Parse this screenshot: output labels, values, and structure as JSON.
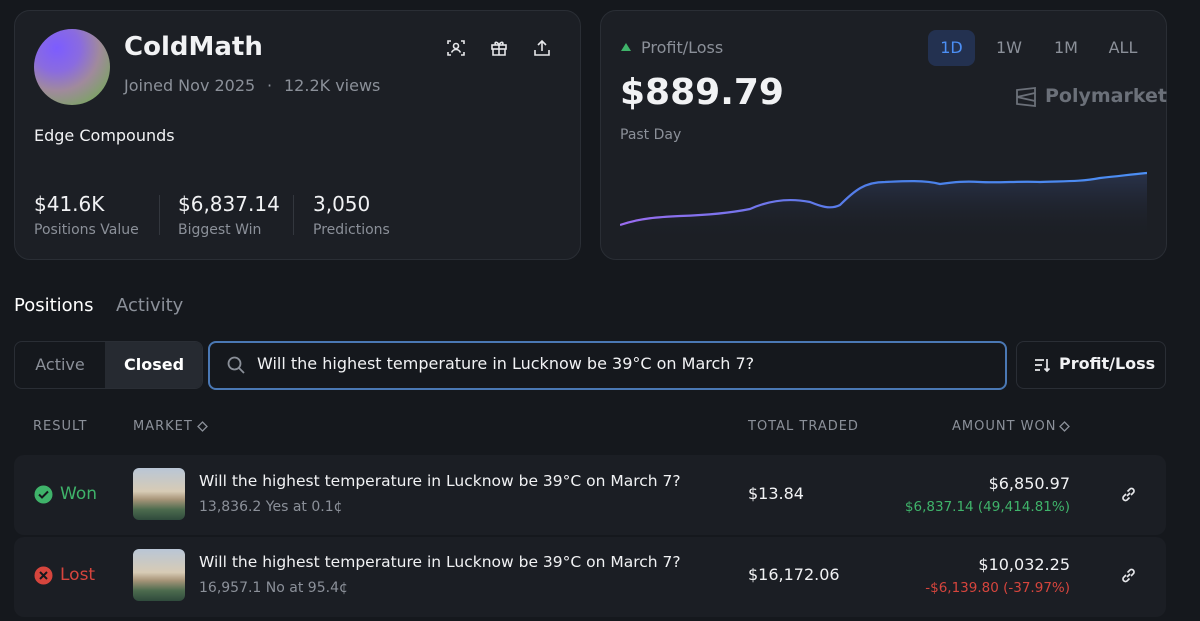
{
  "profile": {
    "name": "ColdMath",
    "joined": "Joined Nov 2025",
    "separator": "·",
    "views": "12.2K views",
    "bio": "Edge Compounds",
    "stats": [
      {
        "value": "$41.6K",
        "label": "Positions Value"
      },
      {
        "value": "$6,837.14",
        "label": "Biggest Win"
      },
      {
        "value": "3,050",
        "label": "Predictions"
      }
    ]
  },
  "pnl": {
    "label": "Profit/Loss",
    "amount": "$889.79",
    "period": "Past Day",
    "ranges": [
      "1D",
      "1W",
      "1M",
      "ALL"
    ],
    "active_range": 0,
    "brand": "Polymarket"
  },
  "tabs": [
    "Positions",
    "Activity"
  ],
  "filters": [
    "Active",
    "Closed"
  ],
  "active_filter": 1,
  "search": "Will the highest temperature in Lucknow be 39°C on March 7?",
  "sort": "Profit/Loss",
  "table": {
    "headers": [
      "RESULT",
      "MARKET",
      "TOTAL TRADED",
      "AMOUNT WON"
    ],
    "rows": [
      {
        "result": "Won",
        "market": "Will the highest temperature in Lucknow be 39°C on March 7?",
        "detail": "13,836.2 Yes at 0.1¢",
        "total": "$13.84",
        "amount": "$6,850.97",
        "change": "$6,837.14 (49,414.81%)"
      },
      {
        "result": "Lost",
        "market": "Will the highest temperature in Lucknow be 39°C on March 7?",
        "detail": "16,957.1 No at 95.4¢",
        "total": "$16,172.06",
        "amount": "$10,032.25",
        "change": "-$6,139.80 (-37.97%)"
      }
    ]
  }
}
